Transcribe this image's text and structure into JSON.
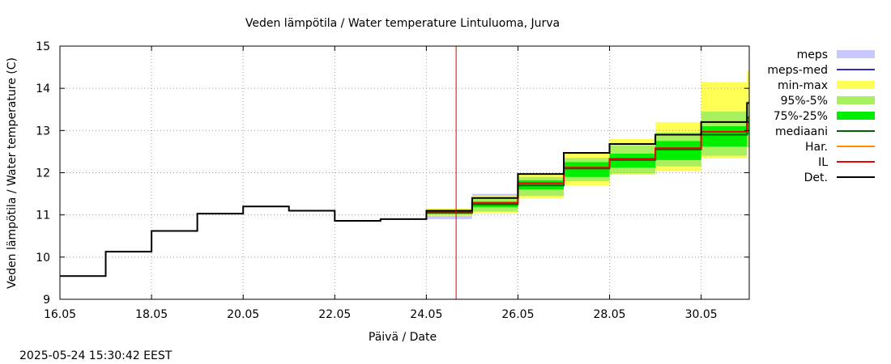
{
  "chart_data": {
    "type": "line",
    "title": "Veden lämpötila / Water temperature Lintuluoma, Jurva",
    "xlabel": "Päivä / Date",
    "ylabel": "Veden lämpötila / Water temperature (C)",
    "timestamp": "2025-05-24 15:30:42 EEST",
    "x_range_days": [
      16,
      31.05
    ],
    "ylim": [
      9,
      15
    ],
    "x_ticks": [
      {
        "day": 16,
        "label": "16.05"
      },
      {
        "day": 18,
        "label": "18.05"
      },
      {
        "day": 20,
        "label": "20.05"
      },
      {
        "day": 22,
        "label": "22.05"
      },
      {
        "day": 24,
        "label": "24.05"
      },
      {
        "day": 26,
        "label": "26.05"
      },
      {
        "day": 28,
        "label": "28.05"
      },
      {
        "day": 30,
        "label": "30.05"
      }
    ],
    "y_ticks": [
      9,
      10,
      11,
      12,
      13,
      14,
      15
    ],
    "grid": true,
    "now_marker_day": 24.65,
    "legend": [
      {
        "label": "meps",
        "kind": "band",
        "color": "#c8c8ff"
      },
      {
        "label": "meps-med",
        "kind": "line",
        "color": "#3030c0"
      },
      {
        "label": "min-max",
        "kind": "band",
        "color": "#ffff55"
      },
      {
        "label": "95%-5%",
        "kind": "band",
        "color": "#a8f060"
      },
      {
        "label": "75%-25%",
        "kind": "band",
        "color": "#00ee00"
      },
      {
        "label": "mediaani",
        "kind": "line",
        "color": "#006400"
      },
      {
        "label": "Har.",
        "kind": "line",
        "color": "#ff8c00"
      },
      {
        "label": "IL",
        "kind": "line",
        "color": "#ee0000"
      },
      {
        "label": "Det.",
        "kind": "line",
        "color": "#000000"
      }
    ],
    "series": {
      "det": [
        {
          "x0": 16,
          "x1": 17,
          "y": 9.55
        },
        {
          "x0": 17,
          "x1": 18,
          "y": 10.13
        },
        {
          "x0": 18,
          "x1": 19,
          "y": 10.62
        },
        {
          "x0": 19,
          "x1": 20,
          "y": 11.03
        },
        {
          "x0": 20,
          "x1": 21,
          "y": 11.2
        },
        {
          "x0": 21,
          "x1": 22,
          "y": 11.1
        },
        {
          "x0": 22,
          "x1": 23,
          "y": 10.86
        },
        {
          "x0": 23,
          "x1": 24,
          "y": 10.9
        },
        {
          "x0": 24,
          "x1": 25,
          "y": 11.1
        },
        {
          "x0": 25,
          "x1": 26,
          "y": 11.4
        },
        {
          "x0": 26,
          "x1": 27,
          "y": 11.97
        },
        {
          "x0": 27,
          "x1": 28,
          "y": 12.47
        },
        {
          "x0": 28,
          "x1": 29,
          "y": 12.68
        },
        {
          "x0": 29,
          "x1": 30,
          "y": 12.9
        },
        {
          "x0": 30,
          "x1": 31,
          "y": 13.2
        },
        {
          "x0": 31,
          "x1": 31.05,
          "y": 13.65
        }
      ],
      "il": [
        {
          "x0": 24,
          "x1": 25,
          "y": 11.08
        },
        {
          "x0": 25,
          "x1": 26,
          "y": 11.28
        },
        {
          "x0": 26,
          "x1": 27,
          "y": 11.75
        },
        {
          "x0": 27,
          "x1": 28,
          "y": 12.12
        },
        {
          "x0": 28,
          "x1": 29,
          "y": 12.33
        },
        {
          "x0": 29,
          "x1": 30,
          "y": 12.58
        },
        {
          "x0": 30,
          "x1": 31,
          "y": 12.97
        },
        {
          "x0": 31,
          "x1": 31.05,
          "y": 13.3
        }
      ],
      "mediaani": [
        {
          "x0": 24,
          "x1": 25,
          "y": 11.05
        },
        {
          "x0": 25,
          "x1": 26,
          "y": 11.25
        },
        {
          "x0": 26,
          "x1": 27,
          "y": 11.7
        },
        {
          "x0": 27,
          "x1": 28,
          "y": 12.1
        },
        {
          "x0": 28,
          "x1": 29,
          "y": 12.3
        },
        {
          "x0": 29,
          "x1": 30,
          "y": 12.55
        },
        {
          "x0": 30,
          "x1": 31,
          "y": 12.9
        },
        {
          "x0": 31,
          "x1": 31.05,
          "y": 13.2
        }
      ],
      "meps_band": [
        {
          "x0": 24,
          "x1": 25,
          "lo": 10.9,
          "hi": 11.12
        },
        {
          "x0": 25,
          "x1": 26,
          "lo": 11.2,
          "hi": 11.5
        }
      ],
      "minmax": [
        {
          "x0": 24,
          "x1": 25,
          "lo": 10.98,
          "hi": 11.15
        },
        {
          "x0": 25,
          "x1": 26,
          "lo": 11.05,
          "hi": 11.45
        },
        {
          "x0": 26,
          "x1": 27,
          "lo": 11.4,
          "hi": 11.97
        },
        {
          "x0": 27,
          "x1": 28,
          "lo": 11.7,
          "hi": 12.45
        },
        {
          "x0": 28,
          "x1": 29,
          "lo": 11.95,
          "hi": 12.8
        },
        {
          "x0": 29,
          "x1": 30,
          "lo": 12.05,
          "hi": 13.2
        },
        {
          "x0": 30,
          "x1": 31,
          "lo": 12.35,
          "hi": 14.15
        },
        {
          "x0": 31,
          "x1": 31.05,
          "lo": 12.6,
          "hi": 14.4
        }
      ],
      "p95_5": [
        {
          "x0": 24,
          "x1": 25,
          "lo": 11.0,
          "hi": 11.12
        },
        {
          "x0": 25,
          "x1": 26,
          "lo": 11.08,
          "hi": 11.4
        },
        {
          "x0": 26,
          "x1": 27,
          "lo": 11.45,
          "hi": 11.9
        },
        {
          "x0": 27,
          "x1": 28,
          "lo": 11.8,
          "hi": 12.35
        },
        {
          "x0": 28,
          "x1": 29,
          "lo": 11.98,
          "hi": 12.65
        },
        {
          "x0": 29,
          "x1": 30,
          "lo": 12.15,
          "hi": 12.95
        },
        {
          "x0": 30,
          "x1": 31,
          "lo": 12.4,
          "hi": 13.45
        },
        {
          "x0": 31,
          "x1": 31.05,
          "lo": 12.6,
          "hi": 13.7
        }
      ],
      "p75_25": [
        {
          "x0": 24,
          "x1": 25,
          "lo": 11.03,
          "hi": 11.1
        },
        {
          "x0": 25,
          "x1": 26,
          "lo": 11.18,
          "hi": 11.32
        },
        {
          "x0": 26,
          "x1": 27,
          "lo": 11.6,
          "hi": 11.82
        },
        {
          "x0": 27,
          "x1": 28,
          "lo": 11.9,
          "hi": 12.25
        },
        {
          "x0": 28,
          "x1": 29,
          "lo": 12.12,
          "hi": 12.45
        },
        {
          "x0": 29,
          "x1": 30,
          "lo": 12.3,
          "hi": 12.75
        },
        {
          "x0": 30,
          "x1": 31,
          "lo": 12.62,
          "hi": 13.1
        },
        {
          "x0": 31,
          "x1": 31.05,
          "lo": 12.9,
          "hi": 13.35
        }
      ]
    }
  }
}
